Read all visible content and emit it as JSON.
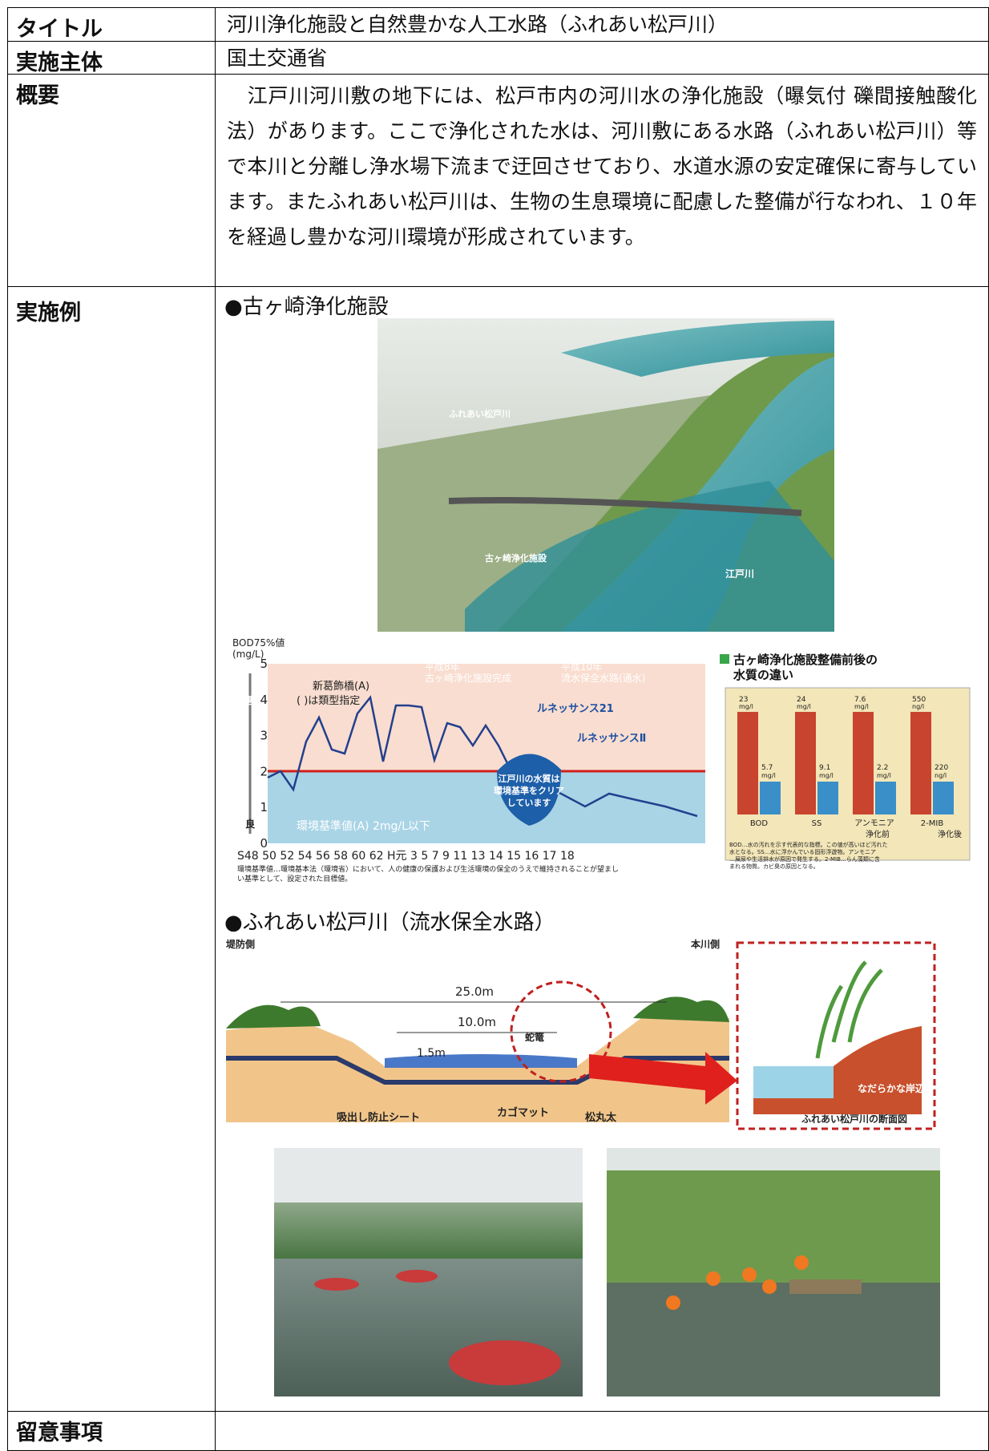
{
  "table": {
    "rows": [
      {
        "label": "タイトル",
        "content": "河川浄化施設と自然豊かな人工水路（ふれあい松戸川）"
      },
      {
        "label": "実施主体",
        "content": "国土交通省"
      },
      {
        "label": "概要",
        "content": "　江戸川河川敷の地下には、松戸市内の河川水の浄化施設（曝気付 礫間接触酸化法）があります。ここで浄化された水は、河川敷にある水路（ふれあい松戸川）等で本川と分離し浄水場下流まで迂回させており、水道水源の安定確保に寄与しています。またふれあい松戸川は、生物の生息環境に配慮した整備が行なわれ、１０年を経過し豊かな河川環境が形成されています。"
      },
      {
        "label": "実施例",
        "sections": [
          {
            "heading": "●古ヶ崎浄化施設"
          },
          {
            "heading": "●ふれあい松戸川（流水保全水路）"
          }
        ]
      },
      {
        "label": "留意事項"
      }
    ]
  },
  "figures": {
    "aerial": {
      "labels": [
        "ふれあい松戸川",
        "古ヶ崎浄化施設",
        "江戸川"
      ]
    },
    "line_chart": {
      "ylabel": "BOD75%値",
      "yunit": "(mg/L)",
      "yticks": [
        5,
        4,
        3,
        2,
        1,
        0
      ],
      "bad": "悪",
      "good": "良",
      "legend": "新葛飾橋(A)",
      "legend_note": "( )は類型指定",
      "events": [
        "平成8年",
        "古ヶ崎浄化施設完成",
        "平成10年",
        "流水保全水路(通水)"
      ],
      "programs": [
        "ルネッサンス21",
        "ルネッサンスⅡ"
      ],
      "standard": "環境基準値(A) 2mg/L以下",
      "callout": [
        "江戸川の水質は",
        "環境基準をクリア",
        "しています"
      ],
      "xlabels": "S48 50  52  54  56  58  60  62  H元  3   5   7   9  11  13  14  15  16  17  18",
      "note": [
        "環境基準値…環境基本法（環境省）において、人の健康の保護および生活環境の保全のうえで維持されることが望まし",
        "い基準として、設定された目標値。"
      ]
    },
    "bar_chart": {
      "title": [
        "古ヶ崎浄化施設整備前後の",
        "水質の違い"
      ],
      "categories": [
        "BOD",
        "SS",
        "アンモニア",
        "2-MIB"
      ],
      "before": [
        "23",
        "24",
        "7.6",
        "550"
      ],
      "before_units": [
        "mg/l",
        "mg/l",
        "mg/l",
        "ng/l"
      ],
      "after": [
        "5.7",
        "9.1",
        "2.2",
        "220"
      ],
      "after_units": [
        "mg/l",
        "mg/l",
        "mg/l",
        "ng/l"
      ],
      "legend": [
        "浄化前",
        "浄化後"
      ],
      "note": [
        "BOD…水の汚れを示す代表的な指標。この値が高いほど汚れた",
        "水となる。SS…水に浮かんでいる固形浮遊物。アンモニア",
        "…屎尿や生活排水が原因で発生する。2-MIB…らん藻類に含",
        "まれる物質。カビ臭の原因となる。"
      ]
    },
    "cross_section": {
      "left": "堤防側",
      "right": "本川側",
      "width_total": "25.0m",
      "width_channel": "10.0m",
      "depth": "1.5m",
      "labels": [
        "蛇篭",
        "吸出し防止シート",
        "カゴマット",
        "松丸太"
      ],
      "inset": [
        "なだらかな岸辺",
        "ふれあい松戸川の断面図"
      ]
    }
  }
}
